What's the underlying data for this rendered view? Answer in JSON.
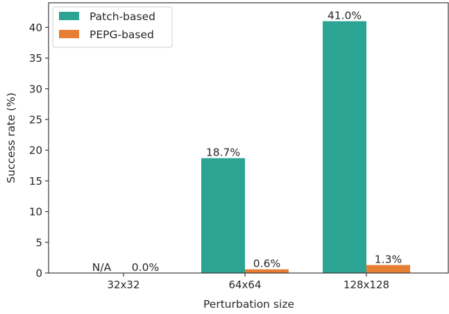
{
  "chart_data": {
    "type": "bar",
    "categories": [
      "32x32",
      "64x64",
      "128x128"
    ],
    "series": [
      {
        "name": "Patch-based",
        "color": "#2ca493",
        "values": [
          null,
          18.7,
          41.0
        ],
        "labels": [
          "N/A",
          "18.7%",
          "41.0%"
        ]
      },
      {
        "name": "PEPG-based",
        "color": "#e67f33",
        "values": [
          0.0,
          0.6,
          1.3
        ],
        "labels": [
          "0.0%",
          "0.6%",
          "1.3%"
        ]
      }
    ],
    "xlabel": "Perturbation size",
    "ylabel": "Success rate (%)",
    "ylim": [
      0,
      44
    ],
    "yticks": [
      0,
      5,
      10,
      15,
      20,
      25,
      30,
      35,
      40
    ],
    "grid": false,
    "legend_position": "top-left"
  }
}
